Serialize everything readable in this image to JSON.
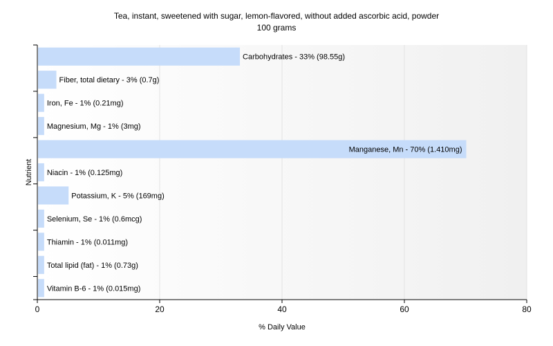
{
  "chart_data": {
    "type": "bar",
    "orientation": "horizontal",
    "title": "Tea, instant, sweetened with sugar, lemon-flavored, without added ascorbic acid, powder",
    "subtitle": "100 grams",
    "xlabel": "% Daily Value",
    "ylabel": "Nutrient",
    "xlim": [
      0,
      80
    ],
    "xticks": [
      "0",
      "20",
      "40",
      "60",
      "80"
    ],
    "grid": true,
    "bar_color": "#c6dcfa",
    "categories": [
      "Carbohydrates",
      "Fiber, total dietary",
      "Iron, Fe",
      "Magnesium, Mg",
      "Manganese, Mn",
      "Niacin",
      "Potassium, K",
      "Selenium, Se",
      "Thiamin",
      "Total lipid (fat)",
      "Vitamin B-6"
    ],
    "values": [
      33,
      3,
      1,
      1,
      70,
      1,
      5,
      1,
      1,
      1,
      1
    ],
    "labels": [
      "Carbohydrates - 33% (98.55g)",
      "Fiber, total dietary - 3% (0.7g)",
      "Iron, Fe - 1% (0.21mg)",
      "Magnesium, Mg - 1% (3mg)",
      "Manganese, Mn - 70% (1.410mg)",
      "Niacin - 1% (0.125mg)",
      "Potassium, K - 5% (169mg)",
      "Selenium, Se - 1% (0.6mcg)",
      "Thiamin - 1% (0.011mg)",
      "Total lipid (fat) - 1% (0.73g)",
      "Vitamin B-6 - 1% (0.015mg)"
    ]
  }
}
